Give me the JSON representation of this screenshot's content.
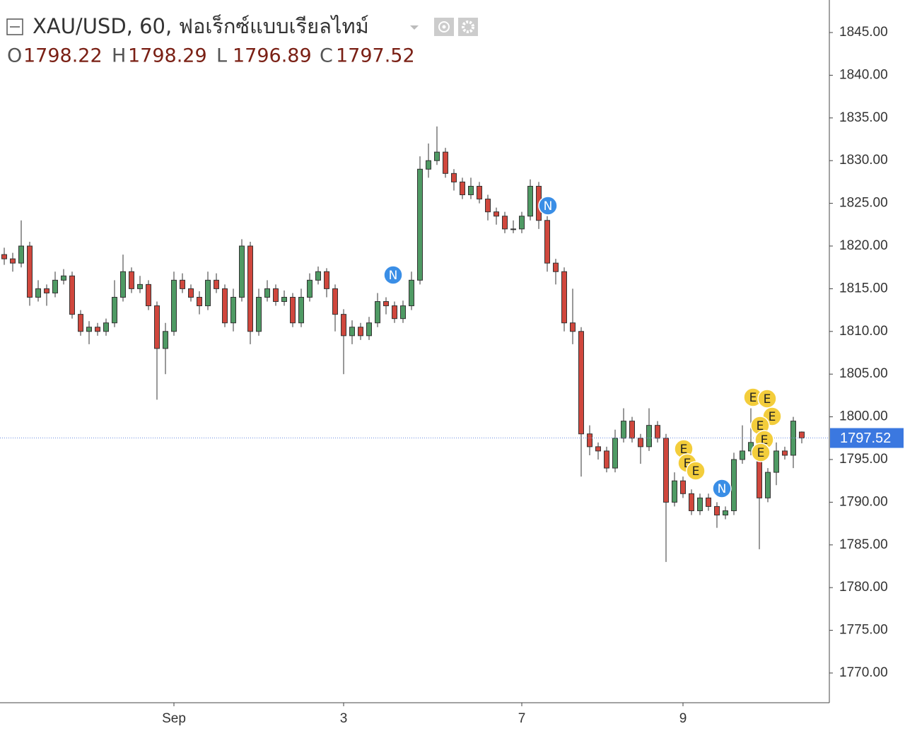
{
  "chart_data": {
    "type": "candlestick",
    "title": "XAU/USD, 60, ฟอเร็กซ์แบบเรียลไทม์",
    "ohlc_labels": [
      "O",
      "H",
      "L",
      "C"
    ],
    "markers": [
      "N",
      "N",
      "N",
      "E",
      "E",
      "E",
      "E",
      "E",
      "E",
      "E",
      "E",
      "E"
    ],
    "categories": [
      null,
      null,
      null,
      null,
      null,
      null,
      null,
      null,
      null,
      null,
      null,
      null,
      null,
      null,
      null,
      null,
      null,
      null,
      null,
      null,
      "Sep",
      null,
      null,
      null,
      null,
      null,
      null,
      null,
      null,
      null,
      null,
      null,
      null,
      null,
      null,
      null,
      null,
      null,
      null,
      null,
      "3",
      null,
      null,
      null,
      null,
      null,
      null,
      null,
      null,
      null,
      null,
      null,
      null,
      null,
      null,
      null,
      null,
      null,
      null,
      null,
      null,
      "7",
      null,
      null,
      null,
      null,
      null,
      null,
      null,
      null,
      null,
      null,
      null,
      null,
      null,
      null,
      null,
      null,
      null,
      null,
      "9",
      null,
      null,
      null,
      null,
      null,
      null,
      null,
      null,
      null,
      null,
      null,
      null,
      null,
      null
    ],
    "open": [
      1819,
      1818.5,
      1818,
      1820,
      1814,
      1815,
      1814.5,
      1816,
      1816.5,
      1812,
      1810,
      1810.5,
      1810,
      1811,
      1814,
      1817,
      1815,
      1815.5,
      1813,
      1808,
      1810,
      1816,
      1815,
      1814,
      1813,
      1816,
      1815,
      1811,
      1814,
      1820,
      1810,
      1814,
      1815,
      1813.5,
      1814,
      1811,
      1814,
      1816,
      1817,
      1815,
      1812,
      1809.5,
      1810.5,
      1809.5,
      1811,
      1813.5,
      1813,
      1811.5,
      1813,
      1816,
      1829,
      1830,
      1831,
      1828.5,
      1827.5,
      1826,
      1827,
      1825.5,
      1824,
      1823.5,
      1822,
      1822,
      1823.5,
      1827,
      1823,
      1818,
      1817,
      1811,
      1810,
      1798,
      1796.5,
      1796,
      1794,
      1797.5,
      1799.5,
      1797.5,
      1796.5,
      1799,
      1797.5,
      1790,
      1792.5,
      1791,
      1789,
      1790.5,
      1789.5,
      1788.5,
      1789,
      1795,
      1796,
      1797,
      1790.5,
      1793.5,
      1796,
      1795.5,
      1798.22
    ],
    "high": [
      1819.8,
      1819.2,
      1823,
      1820.5,
      1816,
      1815.5,
      1817,
      1817.3,
      1817,
      1812.5,
      1811.2,
      1811,
      1811.5,
      1816,
      1819,
      1817.5,
      1816.5,
      1816,
      1813.5,
      1811,
      1817,
      1816.8,
      1815.5,
      1814.7,
      1817,
      1816.8,
      1815.5,
      1815,
      1820.8,
      1820.5,
      1815,
      1816,
      1815.5,
      1814.8,
      1814.5,
      1815,
      1816.8,
      1817.6,
      1817.4,
      1815.5,
      1812.6,
      1811.3,
      1811,
      1811.7,
      1814.5,
      1814,
      1813.5,
      1813.6,
      1817,
      1830.5,
      1832,
      1834,
      1831.5,
      1829,
      1828,
      1828,
      1827.5,
      1826,
      1824.5,
      1824,
      1823,
      1824,
      1827.8,
      1827.5,
      1823.5,
      1818.5,
      1817.5,
      1815,
      1810.5,
      1799,
      1797,
      1796.5,
      1798.5,
      1801,
      1800,
      1798,
      1801,
      1799.5,
      1798,
      1793.5,
      1793,
      1791.5,
      1791,
      1791,
      1790,
      1789.5,
      1795.8,
      1799,
      1801,
      1799,
      1794,
      1797,
      1796.5,
      1800,
      1798.29
    ],
    "low": [
      1817.8,
      1817,
      1817.5,
      1813,
      1813.5,
      1813,
      1814,
      1815.5,
      1811.5,
      1809.5,
      1808.5,
      1809.5,
      1809.5,
      1810.5,
      1813.5,
      1814.5,
      1814.5,
      1812.5,
      1802,
      1805,
      1809.5,
      1814.5,
      1813.5,
      1812,
      1812.5,
      1814.5,
      1810.5,
      1810,
      1813.5,
      1808.5,
      1809.5,
      1813.5,
      1813,
      1813,
      1810.5,
      1810.5,
      1813.5,
      1815.5,
      1814,
      1810,
      1805,
      1808.5,
      1809,
      1809,
      1810.5,
      1812,
      1811,
      1811,
      1812.5,
      1815.5,
      1828,
      1829.5,
      1828,
      1826.5,
      1825.5,
      1825.5,
      1825,
      1823,
      1822.5,
      1821.5,
      1821.5,
      1821.5,
      1823,
      1822,
      1817,
      1815.5,
      1810,
      1808.5,
      1793,
      1795.5,
      1795,
      1793.5,
      1793.5,
      1797,
      1797,
      1794.5,
      1796,
      1797,
      1783,
      1789.5,
      1790.5,
      1788.5,
      1788.5,
      1789,
      1787,
      1788,
      1788.5,
      1794.5,
      1795.5,
      1784.5,
      1790,
      1792,
      1795,
      1794,
      1796.89
    ],
    "close": [
      1818.5,
      1818,
      1820,
      1814,
      1815,
      1814.5,
      1816,
      1816.5,
      1812,
      1810,
      1810.5,
      1810,
      1811,
      1814,
      1817,
      1815,
      1815.5,
      1813,
      1808,
      1810,
      1816,
      1815,
      1814,
      1813,
      1816,
      1815,
      1811,
      1814,
      1820,
      1810,
      1814,
      1815,
      1813.5,
      1814,
      1811,
      1814,
      1816,
      1817,
      1815,
      1812,
      1809.5,
      1810.5,
      1809.5,
      1811,
      1813.5,
      1813,
      1811.5,
      1813,
      1816,
      1829,
      1830,
      1831,
      1828.5,
      1827.5,
      1826,
      1827,
      1825.5,
      1824,
      1823.5,
      1822,
      1822,
      1823.5,
      1827,
      1823,
      1818,
      1817,
      1811,
      1810,
      1798,
      1796.5,
      1796,
      1794,
      1797.5,
      1799.5,
      1797.5,
      1796.5,
      1799,
      1797.5,
      1790,
      1792.5,
      1791,
      1789,
      1790.5,
      1789.5,
      1788.5,
      1789,
      1795,
      1796,
      1797,
      1790.5,
      1793.5,
      1796,
      1795.5,
      1799.5,
      1797.52
    ],
    "up_color": "#4f9a64",
    "down_color": "#d0473d",
    "marker_colors": {
      "N": "#3a8ee6",
      "E": "#f3cd3b"
    },
    "ylim": [
      1766.52,
      1848.81
    ],
    "yticks": [
      {
        "value": 1845,
        "label": "1845.00"
      },
      {
        "value": 1840,
        "label": "1840.00"
      },
      {
        "value": 1835,
        "label": "1835.00"
      },
      {
        "value": 1830,
        "label": "1830.00"
      },
      {
        "value": 1825,
        "label": "1825.00"
      },
      {
        "value": 1820,
        "label": "1820.00"
      },
      {
        "value": 1815,
        "label": "1815.00"
      },
      {
        "value": 1810,
        "label": "1810.00"
      },
      {
        "value": 1805,
        "label": "1805.00"
      },
      {
        "value": 1800,
        "label": "1800.00"
      },
      {
        "value": 1795,
        "label": "1795.00"
      },
      {
        "value": 1790,
        "label": "1790.00"
      },
      {
        "value": 1785,
        "label": "1785.00"
      },
      {
        "value": 1780,
        "label": "1780.00"
      },
      {
        "value": 1775,
        "label": "1775.00"
      },
      {
        "value": 1770,
        "label": "1770.00"
      }
    ],
    "grid": false
  }
}
